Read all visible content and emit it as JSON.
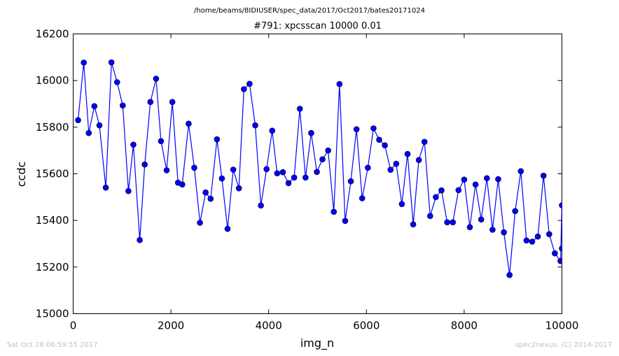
{
  "suptitle": "/home/beams/8IDIUSER/spec_data/2017/Oct2017/bates20171024",
  "footer": {
    "timestamp": "Sat Oct 28 06:59:55 2017",
    "credit": "spec2nexus, (C) 2014-2017"
  },
  "chart_data": {
    "type": "line",
    "title": "#791: xpcsscan 10000 0.01",
    "xlabel": "img_n",
    "ylabel": "ccdc",
    "xlim": [
      0,
      10000
    ],
    "ylim": [
      15000,
      16200
    ],
    "xticks": [
      0,
      2000,
      4000,
      6000,
      8000,
      10000
    ],
    "yticks": [
      15000,
      15200,
      15400,
      15600,
      15800,
      16000,
      16200
    ],
    "grid": false,
    "line_color": "#0000ff",
    "marker_color": "#0000ff",
    "series": [
      {
        "x": [
          101,
          217,
          319,
          434,
          537,
          667,
          783,
          899,
          1014,
          1130,
          1232,
          1362,
          1464,
          1580,
          1696,
          1797,
          1913,
          2029,
          2145,
          2232,
          2362,
          2478,
          2594,
          2710,
          2812,
          2942,
          3043,
          3159,
          3275,
          3391,
          3493,
          3609,
          3725,
          3841,
          3957,
          4072,
          4174,
          4290,
          4406,
          4522,
          4638,
          4754,
          4870,
          4986,
          5101,
          5217,
          5333,
          5449,
          5565,
          5681,
          5797,
          5913,
          6029,
          6145,
          6261,
          6377,
          6493,
          6609,
          6725,
          6841,
          6957,
          7072,
          7188,
          7304,
          7420,
          7536,
          7652,
          7768,
          7884,
          8000,
          8116,
          8232,
          8348,
          8464,
          8580,
          8696,
          8812,
          8928,
          9043,
          9159,
          9275,
          9391,
          9507,
          9623,
          9739,
          9855,
          9971,
          10000
        ],
        "y": [
          15830,
          16077,
          15775,
          15890,
          15808,
          15541,
          16078,
          15993,
          15893,
          15526,
          15725,
          15316,
          15640,
          15908,
          16008,
          15740,
          15615,
          15908,
          15562,
          15554,
          15815,
          15626,
          15390,
          15520,
          15493,
          15748,
          15580,
          15364,
          15618,
          15538,
          15963,
          15986,
          15808,
          15464,
          15620,
          15785,
          15602,
          15607,
          15560,
          15584,
          15879,
          15584,
          15775,
          15608,
          15662,
          15700,
          15437,
          15985,
          15398,
          15568,
          15791,
          15495,
          15626,
          15795,
          15746,
          15722,
          15617,
          15643,
          15470,
          15685,
          15383,
          15659,
          15737,
          15419,
          15500,
          15529,
          15392,
          15392,
          15530,
          15575,
          15371,
          15554,
          15404,
          15581,
          15360,
          15577,
          15349,
          15166,
          15440,
          15611,
          15314,
          15309,
          15331,
          15592,
          15341,
          15259,
          15226,
          15465
        ]
      }
    ],
    "extra_points": [
      {
        "x": 10000,
        "y": 15280
      }
    ]
  }
}
